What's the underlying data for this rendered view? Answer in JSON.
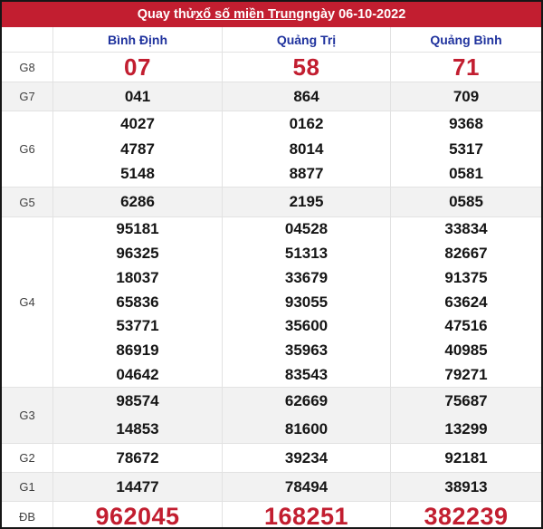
{
  "title": {
    "prefix": "Quay thử",
    "link_text": "xổ số miền Trung",
    "suffix": "ngày 06-10-2022"
  },
  "columns": [
    "Bình Định",
    "Quảng Trị",
    "Quảng Bình"
  ],
  "prizes": [
    {
      "label": "G8",
      "emphasis": "red-large",
      "values": [
        [
          "07"
        ],
        [
          "58"
        ],
        [
          "71"
        ]
      ]
    },
    {
      "label": "G7",
      "emphasis": "normal",
      "values": [
        [
          "041"
        ],
        [
          "864"
        ],
        [
          "709"
        ]
      ]
    },
    {
      "label": "G6",
      "emphasis": "normal",
      "values": [
        [
          "4027",
          "4787",
          "5148"
        ],
        [
          "0162",
          "8014",
          "8877"
        ],
        [
          "9368",
          "5317",
          "0581"
        ]
      ]
    },
    {
      "label": "G5",
      "emphasis": "normal",
      "values": [
        [
          "6286"
        ],
        [
          "2195"
        ],
        [
          "0585"
        ]
      ]
    },
    {
      "label": "G4",
      "emphasis": "normal",
      "values": [
        [
          "95181",
          "96325",
          "18037",
          "65836",
          "53771",
          "86919",
          "04642"
        ],
        [
          "04528",
          "51313",
          "33679",
          "93055",
          "35600",
          "35963",
          "83543"
        ],
        [
          "33834",
          "82667",
          "91375",
          "63624",
          "47516",
          "40985",
          "79271"
        ]
      ]
    },
    {
      "label": "G3",
      "emphasis": "normal",
      "values": [
        [
          "98574",
          "14853"
        ],
        [
          "62669",
          "81600"
        ],
        [
          "75687",
          "13299"
        ]
      ]
    },
    {
      "label": "G2",
      "emphasis": "normal",
      "values": [
        [
          "78672"
        ],
        [
          "39234"
        ],
        [
          "92181"
        ]
      ]
    },
    {
      "label": "G1",
      "emphasis": "normal",
      "values": [
        [
          "14477"
        ],
        [
          "78494"
        ],
        [
          "38913"
        ]
      ]
    },
    {
      "label": "ĐB",
      "emphasis": "red-xlarge",
      "values": [
        [
          "962045"
        ],
        [
          "168251"
        ],
        [
          "382239"
        ]
      ]
    }
  ],
  "colors": {
    "accent_red": "#c21e30",
    "column_header_blue": "#20339e",
    "number_black": "#151515",
    "row_alt_gray": "#f2f2f2",
    "grid_line": "#e2e2e2",
    "title_text": "#ffffff"
  }
}
